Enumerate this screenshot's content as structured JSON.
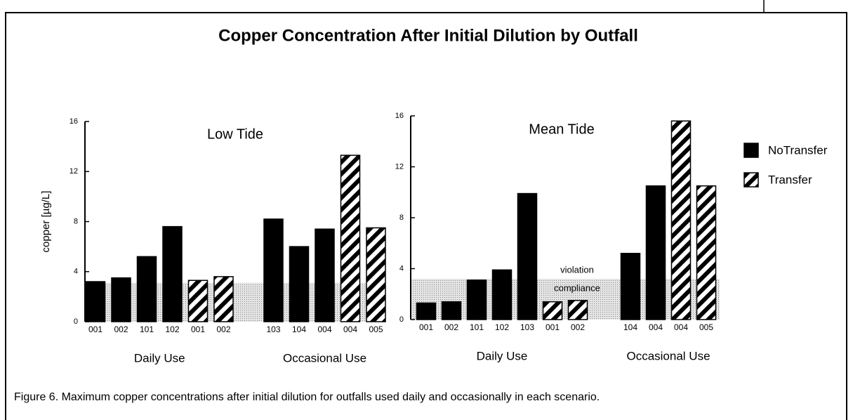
{
  "title": "Copper Concentration After Initial Dilution by Outfall",
  "caption": "Figure 6.  Maximum copper concentrations after initial dilution for outfalls used daily and occasionally in each scenario.",
  "legend": [
    {
      "name": "NoTransfer",
      "color": "#000000",
      "pattern": "solid"
    },
    {
      "name": "Transfer",
      "color": "#000000",
      "pattern": "hatch"
    }
  ],
  "chart_data": [
    {
      "type": "bar",
      "title": "Low Tide",
      "ylabel": "copper [µg/L]",
      "ylim": [
        0,
        16
      ],
      "yticks": [
        0,
        4,
        8,
        12,
        16
      ],
      "threshold": 3.1,
      "groups": [
        {
          "label": "Daily Use",
          "bars": [
            {
              "label": "001",
              "series": "NoTransfer",
              "value": 3.2
            },
            {
              "label": "002",
              "series": "NoTransfer",
              "value": 3.5
            },
            {
              "label": "101",
              "series": "NoTransfer",
              "value": 5.2
            },
            {
              "label": "102",
              "series": "NoTransfer",
              "value": 7.6
            },
            {
              "label": "001",
              "series": "Transfer",
              "value": 3.3
            },
            {
              "label": "002",
              "series": "Transfer",
              "value": 3.6
            }
          ]
        },
        {
          "label": "Occasional Use",
          "bars": [
            {
              "label": "103",
              "series": "NoTransfer",
              "value": 8.2
            },
            {
              "label": "104",
              "series": "NoTransfer",
              "value": 6.0
            },
            {
              "label": "004",
              "series": "NoTransfer",
              "value": 7.4
            },
            {
              "label": "004",
              "series": "Transfer",
              "value": 13.3
            },
            {
              "label": "005",
              "series": "Transfer",
              "value": 7.5
            }
          ]
        }
      ]
    },
    {
      "type": "bar",
      "title": "Mean Tide",
      "ylim": [
        0,
        16
      ],
      "yticks": [
        0,
        4,
        8,
        12,
        16
      ],
      "threshold": 3.2,
      "annotations": [
        "violation",
        "compliance"
      ],
      "groups": [
        {
          "label": "Daily Use",
          "bars": [
            {
              "label": "001",
              "series": "NoTransfer",
              "value": 1.3
            },
            {
              "label": "002",
              "series": "NoTransfer",
              "value": 1.4
            },
            {
              "label": "101",
              "series": "NoTransfer",
              "value": 3.1
            },
            {
              "label": "102",
              "series": "NoTransfer",
              "value": 3.9
            },
            {
              "label": "103",
              "series": "NoTransfer",
              "value": 9.9
            },
            {
              "label": "001",
              "series": "Transfer",
              "value": 1.4
            },
            {
              "label": "002",
              "series": "Transfer",
              "value": 1.5
            }
          ]
        },
        {
          "label": "Occasional Use",
          "bars": [
            {
              "label": "104",
              "series": "NoTransfer",
              "value": 5.2
            },
            {
              "label": "004",
              "series": "NoTransfer",
              "value": 10.5
            },
            {
              "label": "004",
              "series": "Transfer",
              "value": 15.6
            },
            {
              "label": "005",
              "series": "Transfer",
              "value": 10.5
            }
          ]
        }
      ]
    }
  ]
}
